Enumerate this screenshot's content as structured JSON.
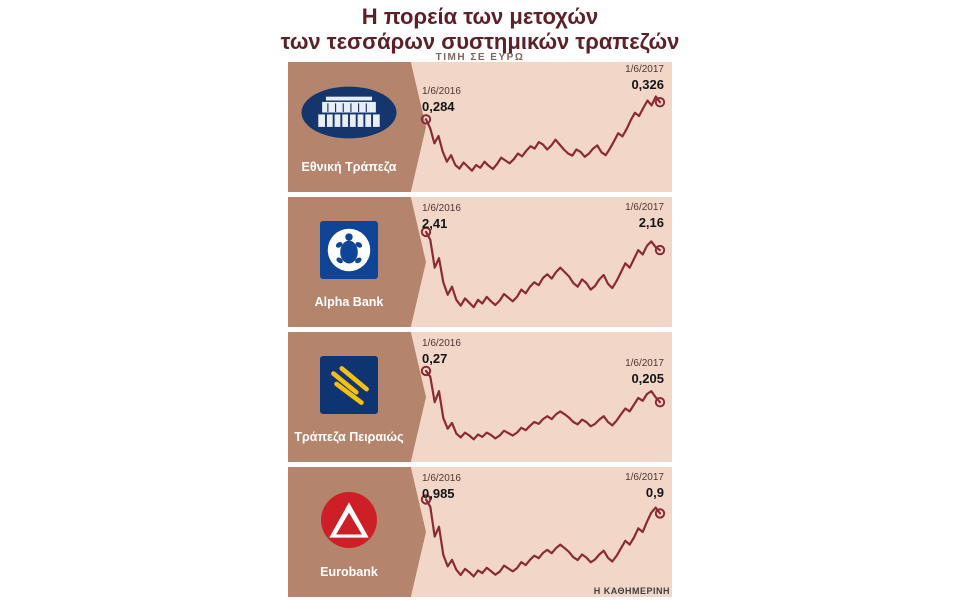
{
  "title": {
    "line1": "Η πορεία των μετοχών",
    "line2": "των τεσσάρων συστημικών τραπεζών",
    "subtitle": "ΤΙΜΗ ΣΕ ΕΥΡΩ"
  },
  "footer": {
    "credit": "Η ΚΑΘΗΜΕΡΙΝΗ"
  },
  "colors": {
    "title": "#5d2026",
    "line": "#8a2b34",
    "panel_bg": "#f2d7c9",
    "label_bg": "#b4846d"
  },
  "panels": [
    {
      "bank": "Εθνική Τράπεζα",
      "logo": "nbg-logo",
      "start": {
        "date": "1/6/2016",
        "value": "0,284"
      },
      "end": {
        "date": "1/6/2017",
        "value": "0,326"
      }
    },
    {
      "bank": "Alpha Bank",
      "logo": "alpha-bank-logo",
      "start": {
        "date": "1/6/2016",
        "value": "2,41"
      },
      "end": {
        "date": "1/6/2017",
        "value": "2,16"
      }
    },
    {
      "bank": "Τράπεζα Πειραιώς",
      "logo": "piraeus-bank-logo",
      "start": {
        "date": "1/6/2016",
        "value": "0,27"
      },
      "end": {
        "date": "1/6/2017",
        "value": "0,205"
      }
    },
    {
      "bank": "Eurobank",
      "logo": "eurobank-logo",
      "start": {
        "date": "1/6/2016",
        "value": "0,985"
      },
      "end": {
        "date": "1/6/2017",
        "value": "0,9"
      }
    }
  ],
  "chart_data": [
    {
      "type": "line",
      "title": "Εθνική Τράπεζα",
      "x_start": "1/6/2016",
      "x_end": "1/6/2017",
      "start_value": 0.284,
      "end_value": 0.326,
      "ylim": [
        0.14,
        0.4
      ],
      "values": [
        0.284,
        0.262,
        0.225,
        0.243,
        0.205,
        0.18,
        0.196,
        0.172,
        0.163,
        0.178,
        0.168,
        0.158,
        0.172,
        0.165,
        0.18,
        0.17,
        0.162,
        0.174,
        0.19,
        0.183,
        0.176,
        0.186,
        0.2,
        0.193,
        0.207,
        0.218,
        0.212,
        0.228,
        0.222,
        0.21,
        0.22,
        0.234,
        0.222,
        0.21,
        0.2,
        0.195,
        0.21,
        0.204,
        0.192,
        0.2,
        0.212,
        0.22,
        0.203,
        0.196,
        0.212,
        0.23,
        0.25,
        0.242,
        0.26,
        0.282,
        0.3,
        0.292,
        0.312,
        0.33,
        0.318,
        0.34,
        0.326
      ]
    },
    {
      "type": "line",
      "title": "Alpha Bank",
      "x_start": "1/6/2016",
      "x_end": "1/6/2017",
      "start_value": 2.41,
      "end_value": 2.16,
      "ylim": [
        1.3,
        2.75
      ],
      "values": [
        2.41,
        2.3,
        1.92,
        2.05,
        1.72,
        1.55,
        1.66,
        1.48,
        1.4,
        1.5,
        1.44,
        1.38,
        1.48,
        1.43,
        1.52,
        1.46,
        1.41,
        1.47,
        1.56,
        1.51,
        1.46,
        1.52,
        1.62,
        1.57,
        1.66,
        1.72,
        1.68,
        1.78,
        1.83,
        1.77,
        1.86,
        1.92,
        1.86,
        1.8,
        1.71,
        1.66,
        1.76,
        1.71,
        1.62,
        1.67,
        1.76,
        1.82,
        1.7,
        1.64,
        1.74,
        1.86,
        1.98,
        1.92,
        2.04,
        2.16,
        2.1,
        2.22,
        2.28,
        2.2,
        2.16
      ]
    },
    {
      "type": "line",
      "title": "Τράπεζα Πειραιώς",
      "x_start": "1/6/2016",
      "x_end": "1/6/2017",
      "start_value": 0.27,
      "end_value": 0.205,
      "ylim": [
        0.11,
        0.33
      ],
      "values": [
        0.27,
        0.258,
        0.205,
        0.228,
        0.172,
        0.15,
        0.162,
        0.14,
        0.132,
        0.142,
        0.136,
        0.128,
        0.138,
        0.133,
        0.142,
        0.137,
        0.13,
        0.136,
        0.146,
        0.141,
        0.136,
        0.142,
        0.152,
        0.147,
        0.156,
        0.164,
        0.16,
        0.17,
        0.176,
        0.17,
        0.18,
        0.186,
        0.18,
        0.173,
        0.164,
        0.159,
        0.169,
        0.164,
        0.155,
        0.16,
        0.169,
        0.176,
        0.164,
        0.157,
        0.167,
        0.18,
        0.192,
        0.186,
        0.2,
        0.214,
        0.208,
        0.222,
        0.228,
        0.215,
        0.205
      ]
    },
    {
      "type": "line",
      "title": "Eurobank",
      "x_start": "1/6/2016",
      "x_end": "1/6/2017",
      "start_value": 0.985,
      "end_value": 0.9,
      "ylim": [
        0.48,
        1.12
      ],
      "values": [
        0.985,
        0.94,
        0.76,
        0.82,
        0.65,
        0.58,
        0.62,
        0.56,
        0.528,
        0.565,
        0.545,
        0.52,
        0.556,
        0.54,
        0.572,
        0.552,
        0.53,
        0.548,
        0.585,
        0.568,
        0.55,
        0.57,
        0.606,
        0.588,
        0.62,
        0.645,
        0.63,
        0.662,
        0.68,
        0.66,
        0.69,
        0.712,
        0.69,
        0.668,
        0.636,
        0.618,
        0.652,
        0.634,
        0.605,
        0.622,
        0.652,
        0.675,
        0.632,
        0.61,
        0.645,
        0.69,
        0.735,
        0.712,
        0.755,
        0.81,
        0.788,
        0.85,
        0.905,
        0.935,
        0.9
      ]
    }
  ]
}
